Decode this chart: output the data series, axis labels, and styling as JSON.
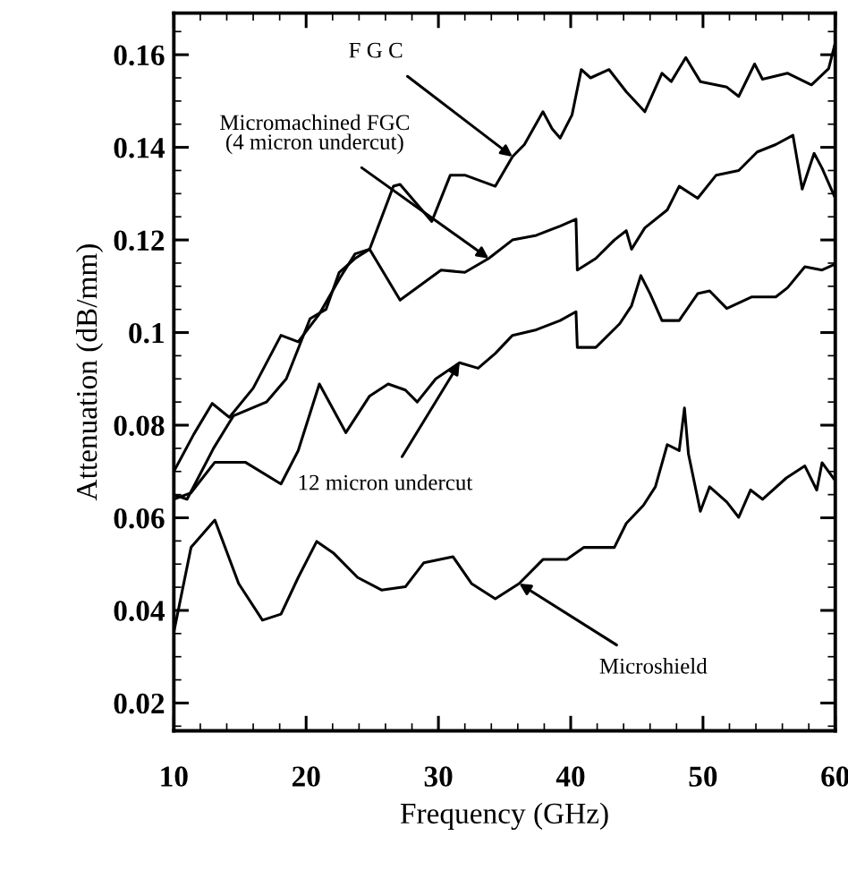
{
  "chart_data": {
    "type": "line",
    "xlabel": "Frequency (GHz)",
    "ylabel": "Attenuation (dB/mm)",
    "xlim": [
      10,
      60
    ],
    "ylim": [
      0.014,
      0.169
    ],
    "xticks": [
      10,
      20,
      30,
      40,
      50,
      60
    ],
    "yticks": [
      0.02,
      0.04,
      0.06,
      0.08,
      0.1,
      0.12,
      0.14,
      0.16
    ],
    "grid": false,
    "legend": false,
    "marker": "none",
    "line_style": "solid",
    "series": [
      {
        "color": "#000000",
        "x": [
          10,
          11.5,
          12.9,
          14.2,
          16,
          18.1,
          19.4,
          21,
          22.6,
          23.7,
          24.8,
          26.6,
          27.1,
          29.5,
          30.9,
          32,
          34.3,
          35.6,
          36.5,
          37.9,
          38.6,
          39.2,
          40.1,
          40.8,
          41.5,
          42.9,
          44.2,
          45.6,
          46.9,
          47.6,
          48.7,
          49.8,
          51.8,
          52.7,
          53.9,
          54.5,
          56.4,
          58.2,
          59.5,
          60
        ],
        "values": [
          0.07,
          0.078,
          0.0847,
          0.0817,
          0.088,
          0.0994,
          0.098,
          0.104,
          0.112,
          0.117,
          0.118,
          0.1316,
          0.132,
          0.124,
          0.134,
          0.134,
          0.1316,
          0.138,
          0.1406,
          0.1477,
          0.144,
          0.142,
          0.147,
          0.1568,
          0.155,
          0.1568,
          0.152,
          0.1477,
          0.156,
          0.1542,
          0.1594,
          0.1542,
          0.153,
          0.151,
          0.158,
          0.1547,
          0.156,
          0.1535,
          0.157,
          0.1626
        ]
      },
      {
        "color": "#000000",
        "x": [
          10,
          11,
          13,
          14.5,
          17,
          18.5,
          20.3,
          21.5,
          22.5,
          23.7,
          24.8,
          27.1,
          30.2,
          32,
          33.8,
          35.6,
          37.4,
          39.2,
          40.4,
          40.5,
          41.9,
          43.3,
          44.2,
          44.6,
          45.6,
          47.3,
          48.2,
          49.6,
          51,
          52.7,
          54.1,
          55.5,
          56.8,
          57.5,
          58.4,
          59,
          60
        ],
        "values": [
          0.065,
          0.064,
          0.075,
          0.082,
          0.085,
          0.09,
          0.103,
          0.105,
          0.113,
          0.116,
          0.118,
          0.107,
          0.1135,
          0.113,
          0.116,
          0.12,
          0.121,
          0.123,
          0.1245,
          0.1135,
          0.116,
          0.12,
          0.122,
          0.118,
          0.1226,
          0.1265,
          0.1316,
          0.129,
          0.134,
          0.135,
          0.139,
          0.1406,
          0.1426,
          0.131,
          0.1387,
          0.1355,
          0.129
        ]
      },
      {
        "color": "#000000",
        "x": [
          10,
          11.3,
          13.1,
          15.4,
          18.1,
          19.4,
          21,
          23,
          24.8,
          26.2,
          27.5,
          28.4,
          29.8,
          31.6,
          33,
          34.3,
          35.6,
          37.4,
          39.2,
          40.4,
          40.5,
          41.9,
          43.7,
          44.6,
          45.3,
          46,
          46.9,
          48.2,
          49.6,
          50.5,
          51.8,
          53.7,
          55.5,
          56.4,
          57.7,
          59,
          60
        ],
        "values": [
          0.064,
          0.0654,
          0.072,
          0.072,
          0.0673,
          0.0745,
          0.0889,
          0.0784,
          0.0863,
          0.0889,
          0.0876,
          0.085,
          0.09,
          0.0935,
          0.0923,
          0.0955,
          0.0994,
          0.1006,
          0.1026,
          0.1045,
          0.0968,
          0.0968,
          0.1019,
          0.1058,
          0.1123,
          0.1084,
          0.1026,
          0.1026,
          0.1084,
          0.109,
          0.1052,
          0.1077,
          0.1077,
          0.1097,
          0.1142,
          0.1135,
          0.1148
        ]
      },
      {
        "color": "#000000",
        "x": [
          10,
          11.3,
          13.1,
          14.9,
          16.7,
          18.1,
          19.4,
          20.8,
          22.1,
          23.9,
          25.7,
          27.5,
          28.9,
          31.1,
          32.5,
          34.3,
          36.1,
          37.9,
          39.7,
          41,
          43.3,
          44.2,
          45.5,
          46.4,
          47.3,
          48.2,
          48.6,
          48.9,
          49.8,
          50.5,
          51.8,
          52.7,
          53.6,
          54.5,
          56.3,
          57.7,
          58.6,
          59,
          60
        ],
        "values": [
          0.0353,
          0.0536,
          0.0595,
          0.0458,
          0.0379,
          0.0392,
          0.0471,
          0.0549,
          0.0523,
          0.0471,
          0.0444,
          0.0451,
          0.0503,
          0.0516,
          0.0458,
          0.0425,
          0.0458,
          0.051,
          0.051,
          0.0536,
          0.0536,
          0.0588,
          0.0627,
          0.0667,
          0.0758,
          0.0745,
          0.0837,
          0.0738,
          0.0614,
          0.0667,
          0.0634,
          0.0601,
          0.066,
          0.064,
          0.0686,
          0.0712,
          0.066,
          0.0719,
          0.068
        ]
      }
    ],
    "annotations": [
      {
        "text": "F G C",
        "x": 35.6,
        "y": 0.138
      },
      {
        "text": "Micromachined FGC\n(4 micron undercut)",
        "x": 33.8,
        "y": 0.116
      },
      {
        "text": "12 micron undercut",
        "x": 31.6,
        "y": 0.0935
      },
      {
        "text": "Microshield",
        "x": 36.1,
        "y": 0.0458
      }
    ]
  }
}
